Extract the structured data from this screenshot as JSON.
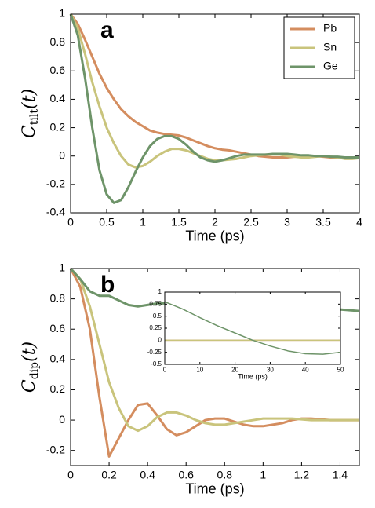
{
  "chart_data": [
    {
      "type": "line",
      "label": "a",
      "xlabel": "Time (ps)",
      "ylabel": {
        "main": "C",
        "sub": "tilt",
        "arg": "(t)"
      },
      "xlim": [
        0,
        4
      ],
      "xticks": [
        0,
        0.5,
        1,
        1.5,
        2,
        2.5,
        3,
        3.5,
        4
      ],
      "ylim": [
        -0.4,
        1
      ],
      "yticks": [
        -0.4,
        -0.2,
        0,
        0.2,
        0.4,
        0.6,
        0.8,
        1
      ],
      "legend": "upper right",
      "x": [
        0,
        0.1,
        0.2,
        0.3,
        0.4,
        0.5,
        0.6,
        0.7,
        0.8,
        0.9,
        1,
        1.1,
        1.2,
        1.3,
        1.4,
        1.5,
        1.6,
        1.7,
        1.8,
        1.9,
        2,
        2.1,
        2.2,
        2.3,
        2.4,
        2.5,
        2.6,
        2.7,
        2.8,
        2.9,
        3,
        3.1,
        3.2,
        3.3,
        3.4,
        3.5,
        3.6,
        3.7,
        3.8,
        3.9,
        4
      ],
      "series": [
        {
          "name": "Pb",
          "color": "#d48d5f",
          "values": [
            1,
            0.93,
            0.82,
            0.7,
            0.58,
            0.48,
            0.4,
            0.33,
            0.28,
            0.24,
            0.21,
            0.18,
            0.165,
            0.155,
            0.15,
            0.145,
            0.13,
            0.11,
            0.09,
            0.07,
            0.055,
            0.045,
            0.04,
            0.03,
            0.02,
            0.01,
            0,
            -0.005,
            -0.01,
            -0.01,
            -0.01,
            -0.005,
            0,
            0,
            0,
            -0.005,
            -0.01,
            -0.01,
            -0.01,
            -0.01,
            -0.01
          ]
        },
        {
          "name": "Sn",
          "color": "#c9c47c",
          "values": [
            1,
            0.9,
            0.72,
            0.52,
            0.35,
            0.2,
            0.09,
            0,
            -0.06,
            -0.08,
            -0.07,
            -0.04,
            0,
            0.03,
            0.05,
            0.05,
            0.04,
            0.02,
            0,
            -0.02,
            -0.03,
            -0.03,
            -0.025,
            -0.02,
            -0.01,
            0,
            0.005,
            0.01,
            0.01,
            0.01,
            0,
            -0.005,
            -0.01,
            -0.01,
            -0.005,
            0,
            -0.005,
            -0.01,
            -0.02,
            -0.02,
            -0.015
          ]
        },
        {
          "name": "Ge",
          "color": "#6e9469",
          "values": [
            1,
            0.85,
            0.55,
            0.2,
            -0.1,
            -0.27,
            -0.33,
            -0.31,
            -0.22,
            -0.11,
            -0.01,
            0.07,
            0.12,
            0.14,
            0.14,
            0.12,
            0.08,
            0.03,
            -0.01,
            -0.03,
            -0.04,
            -0.03,
            -0.015,
            0,
            0.01,
            0.01,
            0.01,
            0.01,
            0.015,
            0.015,
            0.015,
            0.01,
            0.005,
            0.005,
            0,
            0,
            -0.005,
            -0.005,
            -0.01,
            -0.01,
            -0.01
          ]
        }
      ]
    },
    {
      "type": "line",
      "label": "b",
      "xlabel": "Time (ps)",
      "ylabel": {
        "main": "C",
        "sub": "dip",
        "arg": "(t)"
      },
      "xlim": [
        0,
        1.5
      ],
      "xticks": [
        0,
        0.2,
        0.4,
        0.6,
        0.8,
        1,
        1.2,
        1.4
      ],
      "ylim": [
        -0.3,
        1
      ],
      "yticks": [
        -0.2,
        0,
        0.2,
        0.4,
        0.6,
        0.8,
        1
      ],
      "x": [
        0,
        0.05,
        0.1,
        0.15,
        0.2,
        0.25,
        0.3,
        0.35,
        0.4,
        0.45,
        0.5,
        0.55,
        0.6,
        0.65,
        0.7,
        0.75,
        0.8,
        0.85,
        0.9,
        0.95,
        1,
        1.05,
        1.1,
        1.15,
        1.2,
        1.25,
        1.3,
        1.35,
        1.4,
        1.45,
        1.5
      ],
      "series": [
        {
          "color": "#d48d5f",
          "values": [
            1,
            0.88,
            0.6,
            0.15,
            -0.24,
            -0.12,
            0,
            0.1,
            0.11,
            0.03,
            -0.06,
            -0.1,
            -0.08,
            -0.04,
            0,
            0.01,
            0.01,
            -0.01,
            -0.03,
            -0.04,
            -0.04,
            -0.03,
            -0.02,
            0,
            0.01,
            0.01,
            0.005,
            0,
            0,
            0,
            0
          ]
        },
        {
          "color": "#c9c47c",
          "values": [
            1,
            0.93,
            0.75,
            0.5,
            0.25,
            0.08,
            -0.04,
            -0.07,
            -0.04,
            0.02,
            0.05,
            0.05,
            0.03,
            0,
            -0.02,
            -0.03,
            -0.03,
            -0.02,
            -0.01,
            0,
            0.01,
            0.01,
            0.01,
            0.01,
            0.005,
            0,
            0,
            0,
            0,
            0,
            0
          ]
        },
        {
          "color": "#6e9469",
          "values": [
            1,
            0.93,
            0.85,
            0.82,
            0.82,
            0.79,
            0.76,
            0.75,
            0.76,
            0.77,
            0.77,
            0.76,
            0.75,
            0.75,
            0.75,
            0.75,
            0.75,
            0.75,
            0.75,
            0.745,
            0.74,
            0.75,
            0.75,
            0.745,
            0.74,
            0.74,
            0.735,
            0.73,
            0.73,
            0.725,
            0.72
          ]
        }
      ]
    },
    {
      "type": "line",
      "xlabel": "Time (ps)",
      "xlim": [
        0,
        50
      ],
      "xticks": [
        0,
        10,
        20,
        30,
        40,
        50
      ],
      "ylim": [
        -0.5,
        1
      ],
      "yticks": [
        -0.5,
        -0.25,
        0,
        0.25,
        0.5,
        0.75,
        1
      ],
      "x": [
        0,
        5,
        10,
        15,
        20,
        25,
        30,
        35,
        40,
        45,
        50
      ],
      "series": [
        {
          "color": "#d48d5f",
          "values": [
            0,
            0,
            0,
            0,
            0,
            0,
            0,
            0,
            0,
            0,
            0
          ]
        },
        {
          "color": "#c9c47c",
          "values": [
            0,
            0,
            0,
            0,
            0,
            0,
            0,
            0,
            0,
            0,
            0
          ]
        },
        {
          "color": "#6e9469",
          "values": [
            0.8,
            0.65,
            0.47,
            0.3,
            0.15,
            0,
            -0.12,
            -0.22,
            -0.28,
            -0.29,
            -0.25
          ]
        }
      ]
    }
  ]
}
